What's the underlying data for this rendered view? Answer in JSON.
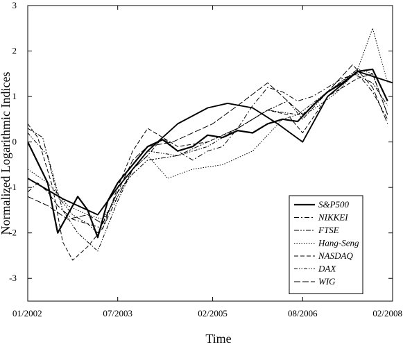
{
  "chart_data": {
    "type": "line",
    "title": "",
    "xlabel": "Time",
    "ylabel": "Normalized Logarithmic Indices",
    "x_range": [
      "2002-01",
      "2008-02"
    ],
    "ylim": [
      -3.5,
      3
    ],
    "x_ticks": [
      {
        "value": "2002-01",
        "label": "01/2002"
      },
      {
        "value": "2003-07",
        "label": "07/2003"
      },
      {
        "value": "2005-02",
        "label": "02/2005"
      },
      {
        "value": "2006-08",
        "label": "08/2006"
      },
      {
        "value": "2008-02",
        "label": "02/2008"
      }
    ],
    "y_ticks": [
      -3,
      -2,
      -1,
      0,
      1,
      2,
      3
    ],
    "grid": false,
    "legend_position": "bottom-right",
    "series": [
      {
        "name": "S&P500",
        "style": "solid-thick",
        "x": [
          "2002-01",
          "2002-03",
          "2002-05",
          "2002-07",
          "2002-09",
          "2002-11",
          "2003-01",
          "2003-03",
          "2003-05",
          "2003-07",
          "2003-10",
          "2004-01",
          "2004-04",
          "2004-07",
          "2004-10",
          "2005-01",
          "2005-04",
          "2005-07",
          "2005-10",
          "2006-01",
          "2006-04",
          "2006-07",
          "2006-10",
          "2007-01",
          "2007-04",
          "2007-07",
          "2007-10",
          "2008-01"
        ],
        "values": [
          0.0,
          -0.45,
          -0.9,
          -2.0,
          -1.6,
          -1.2,
          -1.5,
          -2.1,
          -1.3,
          -0.9,
          -0.5,
          -0.1,
          0.05,
          -0.2,
          -0.1,
          0.15,
          0.1,
          0.25,
          0.2,
          0.4,
          0.5,
          0.45,
          0.8,
          1.1,
          1.3,
          1.55,
          1.6,
          0.9
        ]
      },
      {
        "name": "",
        "style": "solid-fit",
        "x": [
          "2002-01",
          "2002-08",
          "2003-03",
          "2003-07",
          "2004-01",
          "2004-07",
          "2005-01",
          "2005-05",
          "2005-10",
          "2006-03",
          "2006-08",
          "2007-01",
          "2007-07",
          "2008-02"
        ],
        "values": [
          -0.8,
          -1.25,
          -1.6,
          -1.0,
          -0.2,
          0.4,
          0.75,
          0.85,
          0.75,
          0.4,
          0.0,
          1.0,
          1.55,
          1.3
        ]
      },
      {
        "name": "NIKKEI",
        "style": "dash-dot",
        "x": [
          "2002-01",
          "2002-03",
          "2002-05",
          "2002-07",
          "2002-10",
          "2003-01",
          "2003-04",
          "2003-07",
          "2003-10",
          "2004-01",
          "2004-04",
          "2004-07",
          "2004-10",
          "2005-01",
          "2005-04",
          "2005-07",
          "2005-10",
          "2006-01",
          "2006-04",
          "2006-07",
          "2006-10",
          "2007-01",
          "2007-04",
          "2007-07",
          "2007-10",
          "2008-01"
        ],
        "values": [
          -1.1,
          -0.9,
          -1.1,
          -1.4,
          -1.7,
          -1.8,
          -1.9,
          -1.2,
          -0.6,
          -0.3,
          0.1,
          -0.2,
          -0.4,
          -0.2,
          -0.1,
          0.3,
          0.8,
          1.2,
          1.1,
          0.9,
          1.0,
          1.2,
          1.4,
          1.5,
          1.1,
          0.5
        ]
      },
      {
        "name": "FTSE",
        "style": "dash-dot-dot",
        "x": [
          "2002-01",
          "2002-04",
          "2002-07",
          "2002-10",
          "2003-01",
          "2003-03",
          "2003-07",
          "2003-10",
          "2004-01",
          "2004-07",
          "2005-01",
          "2005-07",
          "2006-01",
          "2006-05",
          "2006-08",
          "2007-01",
          "2007-06",
          "2007-10",
          "2008-01"
        ],
        "values": [
          0.3,
          0.1,
          -1.2,
          -1.6,
          -1.8,
          -2.0,
          -1.1,
          -0.7,
          -0.4,
          -0.3,
          0.0,
          0.3,
          0.7,
          0.9,
          0.5,
          1.1,
          1.5,
          1.3,
          0.8
        ]
      },
      {
        "name": "Hang-Seng",
        "style": "dotted",
        "x": [
          "2002-01",
          "2002-05",
          "2002-09",
          "2003-01",
          "2003-04",
          "2003-07",
          "2003-10",
          "2004-01",
          "2004-05",
          "2004-10",
          "2005-04",
          "2005-10",
          "2006-04",
          "2006-10",
          "2007-03",
          "2007-07",
          "2007-10",
          "2008-01"
        ],
        "values": [
          -0.6,
          -0.9,
          -1.4,
          -1.6,
          -1.7,
          -1.2,
          -0.6,
          -0.3,
          -0.8,
          -0.6,
          -0.5,
          -0.2,
          0.5,
          0.7,
          1.1,
          1.6,
          2.5,
          1.3
        ]
      },
      {
        "name": "NASDAQ",
        "style": "dashed",
        "x": [
          "2002-01",
          "2002-03",
          "2002-06",
          "2002-08",
          "2002-10",
          "2003-01",
          "2003-04",
          "2003-07",
          "2003-10",
          "2004-01",
          "2004-07",
          "2005-01",
          "2005-07",
          "2006-01",
          "2006-05",
          "2006-08",
          "2007-01",
          "2007-07",
          "2007-10",
          "2008-01"
        ],
        "values": [
          0.4,
          0.1,
          -1.0,
          -2.2,
          -2.6,
          -2.3,
          -1.9,
          -1.0,
          -0.2,
          0.3,
          -0.1,
          0.0,
          0.3,
          0.7,
          0.6,
          0.2,
          1.0,
          1.4,
          1.5,
          0.6
        ]
      },
      {
        "name": "DAX",
        "style": "dash-dot-dot-2",
        "x": [
          "2002-01",
          "2002-05",
          "2002-08",
          "2002-11",
          "2003-03",
          "2003-07",
          "2003-10",
          "2004-01",
          "2004-07",
          "2005-01",
          "2005-07",
          "2006-01",
          "2006-07",
          "2007-01",
          "2007-07",
          "2007-10",
          "2008-01"
        ],
        "values": [
          0.2,
          -0.3,
          -1.5,
          -2.0,
          -2.4,
          -1.3,
          -0.6,
          -0.2,
          -0.3,
          -0.1,
          0.3,
          0.7,
          0.6,
          1.1,
          1.6,
          1.5,
          0.6
        ]
      },
      {
        "name": "WIG",
        "style": "long-dash",
        "x": [
          "2002-01",
          "2002-05",
          "2002-09",
          "2003-01",
          "2003-04",
          "2003-07",
          "2003-10",
          "2004-01",
          "2004-06",
          "2004-10",
          "2005-02",
          "2005-07",
          "2006-01",
          "2006-04",
          "2006-08",
          "2007-01",
          "2007-06",
          "2007-10",
          "2008-01"
        ],
        "values": [
          -1.2,
          -1.4,
          -1.7,
          -1.6,
          -1.8,
          -1.1,
          -0.4,
          -0.1,
          0.0,
          0.2,
          0.4,
          0.8,
          1.3,
          1.0,
          0.6,
          1.1,
          1.7,
          1.2,
          0.4
        ]
      }
    ]
  }
}
